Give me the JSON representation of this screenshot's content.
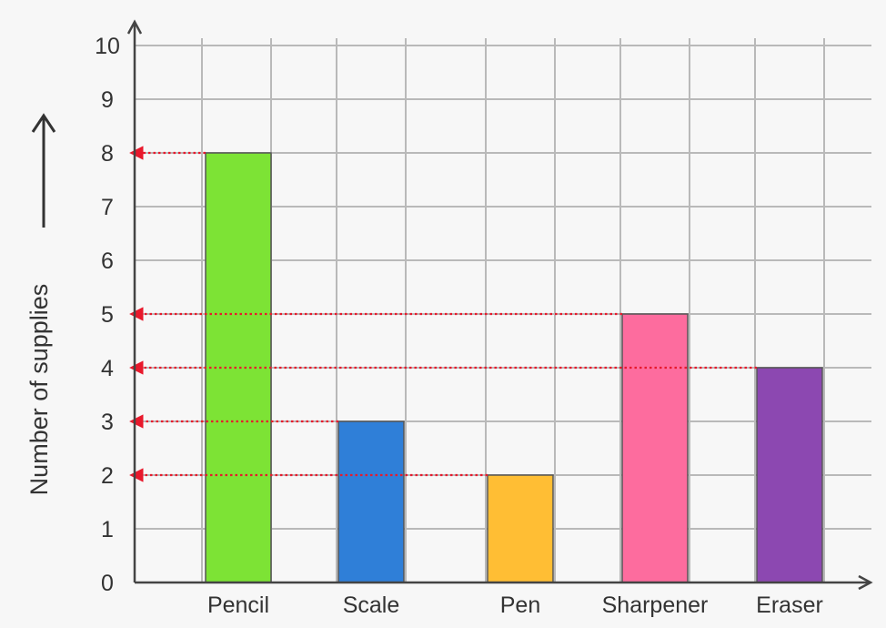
{
  "chart_data": {
    "type": "bar",
    "title": "",
    "xlabel": "",
    "ylabel": "Number of supplies",
    "categories": [
      "Pencil",
      "Scale",
      "Pen",
      "Sharpener",
      "Eraser"
    ],
    "values": [
      8,
      3,
      2,
      5,
      4
    ],
    "ylim": [
      0,
      10
    ],
    "yticks": [
      "0",
      "1",
      "2",
      "3",
      "4",
      "5",
      "6",
      "7",
      "8",
      "9",
      "10"
    ],
    "grid": true,
    "legend": "none",
    "colors": {
      "bars": [
        "#7de335",
        "#2f7fd8",
        "#ffbe34",
        "#fd6c9e",
        "#8c48b1"
      ],
      "bar_outline": "#555555",
      "grid": "#b9b9b9",
      "axis": "#444444",
      "guide_arrow": "#e8192c",
      "background": "#f7f7f7"
    },
    "annotations": {
      "value_guides": "dotted red arrows from each bar top to the y-axis"
    }
  }
}
